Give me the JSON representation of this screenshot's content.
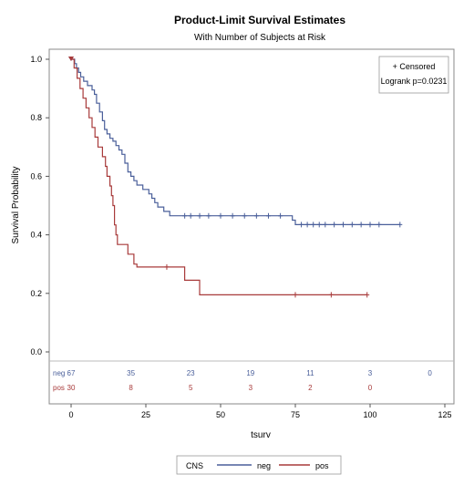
{
  "chart_data": {
    "type": "line",
    "subtype": "kaplan-meier-step",
    "title": "Product-Limit Survival Estimates",
    "subtitle": "With Number of Subjects at Risk",
    "xlabel": "tsurv",
    "ylabel": "Survival Probability",
    "xlim": [
      0,
      125
    ],
    "ylim": [
      0,
      1.0
    ],
    "x_ticks": [
      "0",
      "25",
      "50",
      "75",
      "100",
      "125"
    ],
    "y_ticks": [
      "0.0",
      "0.2",
      "0.4",
      "0.6",
      "0.8",
      "1.0"
    ],
    "grid": false,
    "inset_legend": {
      "position": "top-right",
      "censored_label": "+ Censored",
      "test_label": "Logrank p=0.0231"
    },
    "bottom_legend": {
      "title": "CNS",
      "entries": [
        "neg",
        "pos"
      ]
    },
    "series": [
      {
        "name": "neg",
        "color": "#4a5f9a",
        "steps": [
          [
            0,
            1.0
          ],
          [
            1.2,
            0.985
          ],
          [
            1.8,
            0.97
          ],
          [
            2.5,
            0.955
          ],
          [
            3.2,
            0.94
          ],
          [
            4.2,
            0.925
          ],
          [
            5.5,
            0.91
          ],
          [
            7,
            0.895
          ],
          [
            7.8,
            0.88
          ],
          [
            8.5,
            0.85
          ],
          [
            9.5,
            0.82
          ],
          [
            10.5,
            0.79
          ],
          [
            11.2,
            0.76
          ],
          [
            12,
            0.745
          ],
          [
            13,
            0.73
          ],
          [
            14,
            0.72
          ],
          [
            15,
            0.705
          ],
          [
            16,
            0.69
          ],
          [
            17,
            0.675
          ],
          [
            18,
            0.645
          ],
          [
            19,
            0.615
          ],
          [
            20,
            0.6
          ],
          [
            21,
            0.585
          ],
          [
            22,
            0.57
          ],
          [
            24,
            0.555
          ],
          [
            26,
            0.54
          ],
          [
            27,
            0.525
          ],
          [
            28,
            0.51
          ],
          [
            29,
            0.495
          ],
          [
            31,
            0.48
          ],
          [
            33,
            0.465
          ],
          [
            72,
            0.465
          ],
          [
            74,
            0.45
          ],
          [
            75,
            0.435
          ],
          [
            110,
            0.435
          ]
        ],
        "censored": [
          38,
          40,
          43,
          46,
          50,
          54,
          58,
          62,
          66,
          70,
          77,
          79,
          81,
          83,
          85,
          88,
          91,
          94,
          97,
          100,
          103,
          110
        ]
      },
      {
        "name": "pos",
        "color": "#a83a3a",
        "steps": [
          [
            0,
            1.0
          ],
          [
            1,
            0.97
          ],
          [
            2,
            0.935
          ],
          [
            3,
            0.9
          ],
          [
            4,
            0.867
          ],
          [
            5,
            0.834
          ],
          [
            6,
            0.8
          ],
          [
            7,
            0.767
          ],
          [
            8,
            0.734
          ],
          [
            9,
            0.7
          ],
          [
            10.5,
            0.667
          ],
          [
            11.5,
            0.634
          ],
          [
            12,
            0.6
          ],
          [
            13,
            0.567
          ],
          [
            13.5,
            0.534
          ],
          [
            14,
            0.5
          ],
          [
            14.5,
            0.434
          ],
          [
            15,
            0.4
          ],
          [
            15.5,
            0.367
          ],
          [
            18,
            0.367
          ],
          [
            19,
            0.334
          ],
          [
            21,
            0.3
          ],
          [
            22,
            0.29
          ],
          [
            37,
            0.29
          ],
          [
            38,
            0.245
          ],
          [
            42,
            0.245
          ],
          [
            43,
            0.195
          ],
          [
            99,
            0.195
          ]
        ],
        "censored": [
          32,
          75,
          87,
          99
        ]
      }
    ],
    "risk_table": {
      "rows": [
        {
          "name": "neg",
          "color": "#4a5f9a",
          "x": [
            0,
            20,
            40,
            60,
            80,
            100,
            120
          ],
          "values": [
            "67",
            "35",
            "23",
            "19",
            "11",
            "3",
            "0"
          ]
        },
        {
          "name": "pos",
          "color": "#a83a3a",
          "x": [
            0,
            20,
            40,
            60,
            80,
            100
          ],
          "values": [
            "30",
            "8",
            "5",
            "3",
            "2",
            "0"
          ]
        }
      ]
    }
  }
}
